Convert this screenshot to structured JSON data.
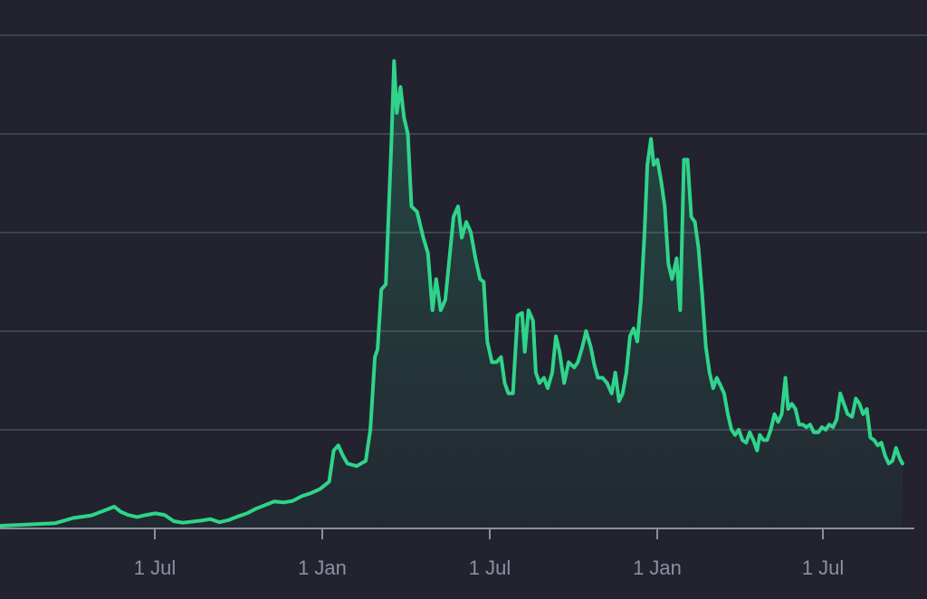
{
  "chart_data": {
    "type": "area",
    "title": "",
    "xlabel": "",
    "ylabel": "",
    "x_tick_labels": [
      "1 Jul",
      "1 Jan",
      "1 Jul",
      "1 Jan",
      "1 Jul"
    ],
    "y_gridlines": 5,
    "xlim": [
      0,
      100
    ],
    "ylim": [
      0,
      100
    ],
    "grid": true,
    "legend": "none",
    "colors": {
      "background": "#22232f",
      "line": "#2fd48a",
      "fill_top": "#2fd48a",
      "grid": "#3f4151",
      "axis": "#8c8e9d",
      "tick_label": "#8e909f"
    },
    "series": [
      {
        "points": [
          [
            0,
            0.5
          ],
          [
            6,
            1.0
          ],
          [
            8,
            2.0
          ],
          [
            10,
            2.5
          ],
          [
            11.5,
            3.5
          ],
          [
            12.5,
            4.2
          ],
          [
            13.2,
            3.2
          ],
          [
            14,
            2.6
          ],
          [
            15,
            2.2
          ],
          [
            16,
            2.6
          ],
          [
            17,
            2.9
          ],
          [
            18,
            2.6
          ],
          [
            19,
            1.4
          ],
          [
            20,
            1.1
          ],
          [
            22,
            1.5
          ],
          [
            23,
            1.8
          ],
          [
            24,
            1.2
          ],
          [
            25,
            1.6
          ],
          [
            26,
            2.3
          ],
          [
            27,
            2.9
          ],
          [
            28,
            3.8
          ],
          [
            29,
            4.5
          ],
          [
            30,
            5.2
          ],
          [
            31,
            5.0
          ],
          [
            32,
            5.3
          ],
          [
            33,
            6.2
          ],
          [
            34,
            6.8
          ],
          [
            35,
            7.6
          ],
          [
            36,
            9.0
          ],
          [
            36.5,
            15.0
          ],
          [
            37,
            16.0
          ],
          [
            37.5,
            14.0
          ],
          [
            38,
            12.5
          ],
          [
            39,
            12.0
          ],
          [
            40,
            13.0
          ],
          [
            40.5,
            19.0
          ],
          [
            41,
            33.0
          ],
          [
            41.3,
            34.5
          ],
          [
            41.7,
            46.0
          ],
          [
            42.2,
            47.0
          ],
          [
            42.8,
            74.0
          ],
          [
            43.1,
            90.0
          ],
          [
            43.4,
            80.0
          ],
          [
            43.8,
            85.0
          ],
          [
            44.2,
            79.0
          ],
          [
            44.6,
            76.0
          ],
          [
            45.0,
            62.0
          ],
          [
            45.6,
            61.0
          ],
          [
            46.3,
            56.0
          ],
          [
            46.8,
            53.0
          ],
          [
            47.3,
            42.0
          ],
          [
            47.7,
            48.0
          ],
          [
            48.2,
            42.0
          ],
          [
            48.7,
            44.0
          ],
          [
            49.1,
            51.0
          ],
          [
            49.6,
            60.0
          ],
          [
            50.1,
            62.0
          ],
          [
            50.5,
            56.0
          ],
          [
            51.0,
            59.0
          ],
          [
            51.5,
            57.0
          ],
          [
            52.0,
            52.0
          ],
          [
            52.5,
            48.0
          ],
          [
            52.9,
            47.5
          ],
          [
            53.3,
            36.0
          ],
          [
            53.8,
            32.0
          ],
          [
            54.3,
            32.0
          ],
          [
            54.8,
            33.0
          ],
          [
            55.2,
            28.0
          ],
          [
            55.6,
            26.0
          ],
          [
            56.1,
            26.0
          ],
          [
            56.6,
            41.0
          ],
          [
            57.1,
            41.5
          ],
          [
            57.4,
            34.0
          ],
          [
            57.8,
            42.0
          ],
          [
            58.3,
            40.0
          ],
          [
            58.6,
            30.0
          ],
          [
            59.0,
            28.0
          ],
          [
            59.5,
            29.0
          ],
          [
            59.9,
            27.0
          ],
          [
            60.4,
            30.0
          ],
          [
            60.8,
            37.0
          ],
          [
            61.2,
            34.0
          ],
          [
            61.7,
            28.0
          ],
          [
            62.2,
            32.0
          ],
          [
            62.8,
            31.0
          ],
          [
            63.2,
            32.0
          ],
          [
            63.7,
            35.0
          ],
          [
            64.1,
            38.0
          ],
          [
            64.6,
            35.0
          ],
          [
            65.0,
            31.5
          ],
          [
            65.4,
            29.0
          ],
          [
            65.9,
            29.0
          ],
          [
            66.4,
            28.0
          ],
          [
            66.9,
            26.0
          ],
          [
            67.3,
            30.0
          ],
          [
            67.7,
            24.5
          ],
          [
            68.1,
            26.0
          ],
          [
            68.5,
            30.0
          ],
          [
            68.9,
            37.0
          ],
          [
            69.3,
            38.5
          ],
          [
            69.7,
            36.0
          ],
          [
            70.1,
            44.0
          ],
          [
            70.5,
            57.0
          ],
          [
            70.8,
            70.0
          ],
          [
            71.2,
            75.0
          ],
          [
            71.5,
            70.0
          ],
          [
            71.9,
            71.0
          ],
          [
            72.3,
            67.0
          ],
          [
            72.7,
            62.0
          ],
          [
            73.1,
            51.0
          ],
          [
            73.5,
            48.0
          ],
          [
            74.0,
            52.0
          ],
          [
            74.4,
            42.0
          ],
          [
            74.8,
            71.0
          ],
          [
            75.2,
            71.0
          ],
          [
            75.6,
            60.0
          ],
          [
            76.0,
            59.0
          ],
          [
            76.4,
            54.0
          ],
          [
            76.8,
            45.0
          ],
          [
            77.2,
            35.0
          ],
          [
            77.6,
            30.0
          ],
          [
            78.0,
            27.0
          ],
          [
            78.4,
            29.0
          ],
          [
            78.8,
            27.5
          ],
          [
            79.2,
            26.0
          ],
          [
            79.6,
            22.0
          ],
          [
            80.0,
            19.0
          ],
          [
            80.4,
            18.0
          ],
          [
            80.8,
            19.0
          ],
          [
            81.2,
            17.0
          ],
          [
            81.6,
            16.5
          ],
          [
            82.0,
            18.5
          ],
          [
            82.4,
            17.0
          ],
          [
            82.8,
            15.0
          ],
          [
            83.1,
            18.0
          ],
          [
            83.5,
            17.0
          ],
          [
            83.9,
            17.0
          ],
          [
            84.3,
            19.0
          ],
          [
            84.7,
            22.0
          ],
          [
            85.1,
            20.5
          ],
          [
            85.5,
            22.0
          ],
          [
            85.9,
            29.0
          ],
          [
            86.2,
            23.0
          ],
          [
            86.6,
            24.0
          ],
          [
            87.0,
            23.0
          ],
          [
            87.4,
            20.0
          ],
          [
            87.8,
            20.0
          ],
          [
            88.2,
            19.5
          ],
          [
            88.6,
            20.0
          ],
          [
            89.0,
            18.5
          ],
          [
            89.5,
            18.5
          ],
          [
            89.9,
            19.5
          ],
          [
            90.3,
            19.0
          ],
          [
            90.7,
            20.0
          ],
          [
            91.1,
            19.5
          ],
          [
            91.5,
            21.0
          ],
          [
            91.9,
            26.0
          ],
          [
            92.3,
            24.0
          ],
          [
            92.7,
            22.0
          ],
          [
            93.2,
            21.5
          ],
          [
            93.6,
            25.0
          ],
          [
            94.0,
            24.0
          ],
          [
            94.4,
            22.0
          ],
          [
            94.8,
            23.0
          ],
          [
            95.2,
            17.5
          ],
          [
            95.6,
            17.0
          ],
          [
            96.0,
            16.0
          ],
          [
            96.4,
            16.5
          ],
          [
            96.8,
            14.0
          ],
          [
            97.2,
            12.5
          ],
          [
            97.6,
            13.0
          ],
          [
            98.0,
            15.5
          ],
          [
            98.4,
            13.5
          ],
          [
            98.7,
            12.5
          ]
        ]
      }
    ]
  }
}
